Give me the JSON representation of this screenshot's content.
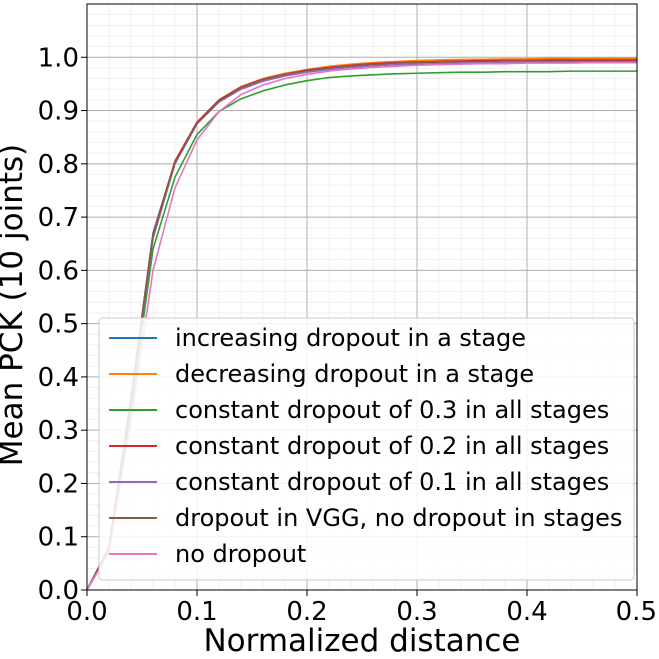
{
  "chart_data": {
    "type": "line",
    "title": "",
    "xlabel": "Normalized distance",
    "ylabel": "Mean PCK (10 joints)",
    "xlim": [
      0.0,
      0.5
    ],
    "ylim": [
      0.0,
      1.1
    ],
    "xticks": [
      0.0,
      0.1,
      0.2,
      0.3,
      0.4,
      0.5
    ],
    "xtick_labels": [
      "0.0",
      "0.1",
      "0.2",
      "0.3",
      "0.4",
      "0.5"
    ],
    "yticks": [
      0.0,
      0.1,
      0.2,
      0.3,
      0.4,
      0.5,
      0.6,
      0.7,
      0.8,
      0.9,
      1.0
    ],
    "ytick_labels": [
      "0.0",
      "0.1",
      "0.2",
      "0.3",
      "0.4",
      "0.5",
      "0.6",
      "0.7",
      "0.8",
      "0.9",
      "1.0"
    ],
    "grid": {
      "major": true,
      "minor": true
    },
    "legend_position": "lower-right",
    "x": [
      0.0,
      0.02,
      0.04,
      0.06,
      0.08,
      0.1,
      0.12,
      0.14,
      0.16,
      0.18,
      0.2,
      0.22,
      0.24,
      0.26,
      0.28,
      0.3,
      0.32,
      0.34,
      0.36,
      0.38,
      0.4,
      0.42,
      0.44,
      0.46,
      0.48,
      0.5
    ],
    "series": [
      {
        "name": "increasing dropout in a stage",
        "color": "#1f77b4",
        "values": [
          0.0,
          0.08,
          0.36,
          0.67,
          0.805,
          0.878,
          0.918,
          0.943,
          0.958,
          0.968,
          0.975,
          0.98,
          0.984,
          0.987,
          0.989,
          0.991,
          0.992,
          0.993,
          0.993,
          0.994,
          0.994,
          0.995,
          0.995,
          0.995,
          0.995,
          0.995
        ]
      },
      {
        "name": "decreasing dropout in a stage",
        "color": "#ff7f0e",
        "values": [
          0.0,
          0.08,
          0.36,
          0.665,
          0.805,
          0.878,
          0.92,
          0.945,
          0.96,
          0.97,
          0.977,
          0.983,
          0.987,
          0.99,
          0.992,
          0.994,
          0.995,
          0.996,
          0.996,
          0.997,
          0.997,
          0.998,
          0.998,
          0.998,
          0.998,
          0.998
        ]
      },
      {
        "name": "constant dropout of 0.3 in all stages",
        "color": "#2ca02c",
        "values": [
          0.0,
          0.075,
          0.34,
          0.64,
          0.775,
          0.855,
          0.898,
          0.922,
          0.937,
          0.948,
          0.956,
          0.962,
          0.965,
          0.967,
          0.969,
          0.97,
          0.971,
          0.972,
          0.972,
          0.973,
          0.973,
          0.973,
          0.974,
          0.974,
          0.974,
          0.974
        ]
      },
      {
        "name": "constant dropout of 0.2 in all stages",
        "color": "#d62728",
        "values": [
          0.0,
          0.08,
          0.36,
          0.665,
          0.805,
          0.878,
          0.92,
          0.944,
          0.959,
          0.968,
          0.976,
          0.981,
          0.985,
          0.988,
          0.99,
          0.991,
          0.992,
          0.993,
          0.994,
          0.994,
          0.994,
          0.995,
          0.995,
          0.995,
          0.995,
          0.995
        ]
      },
      {
        "name": "constant dropout of 0.1 in all stages",
        "color": "#9467bd",
        "values": [
          0.0,
          0.08,
          0.355,
          0.66,
          0.8,
          0.875,
          0.916,
          0.94,
          0.955,
          0.965,
          0.972,
          0.977,
          0.981,
          0.984,
          0.986,
          0.987,
          0.988,
          0.989,
          0.989,
          0.99,
          0.99,
          0.99,
          0.99,
          0.99,
          0.99,
          0.99
        ]
      },
      {
        "name": "dropout in VGG, no dropout in stages",
        "color": "#8c564b",
        "values": [
          0.0,
          0.08,
          0.36,
          0.665,
          0.803,
          0.876,
          0.918,
          0.943,
          0.958,
          0.968,
          0.975,
          0.98,
          0.984,
          0.987,
          0.989,
          0.99,
          0.991,
          0.992,
          0.992,
          0.993,
          0.993,
          0.993,
          0.993,
          0.993,
          0.993,
          0.993
        ]
      },
      {
        "name": "no dropout",
        "color": "#e377c2",
        "values": [
          0.0,
          0.07,
          0.32,
          0.6,
          0.755,
          0.845,
          0.898,
          0.93,
          0.948,
          0.96,
          0.968,
          0.974,
          0.978,
          0.981,
          0.983,
          0.985,
          0.986,
          0.987,
          0.988,
          0.988,
          0.989,
          0.989,
          0.989,
          0.99,
          0.99,
          0.99
        ]
      }
    ]
  }
}
